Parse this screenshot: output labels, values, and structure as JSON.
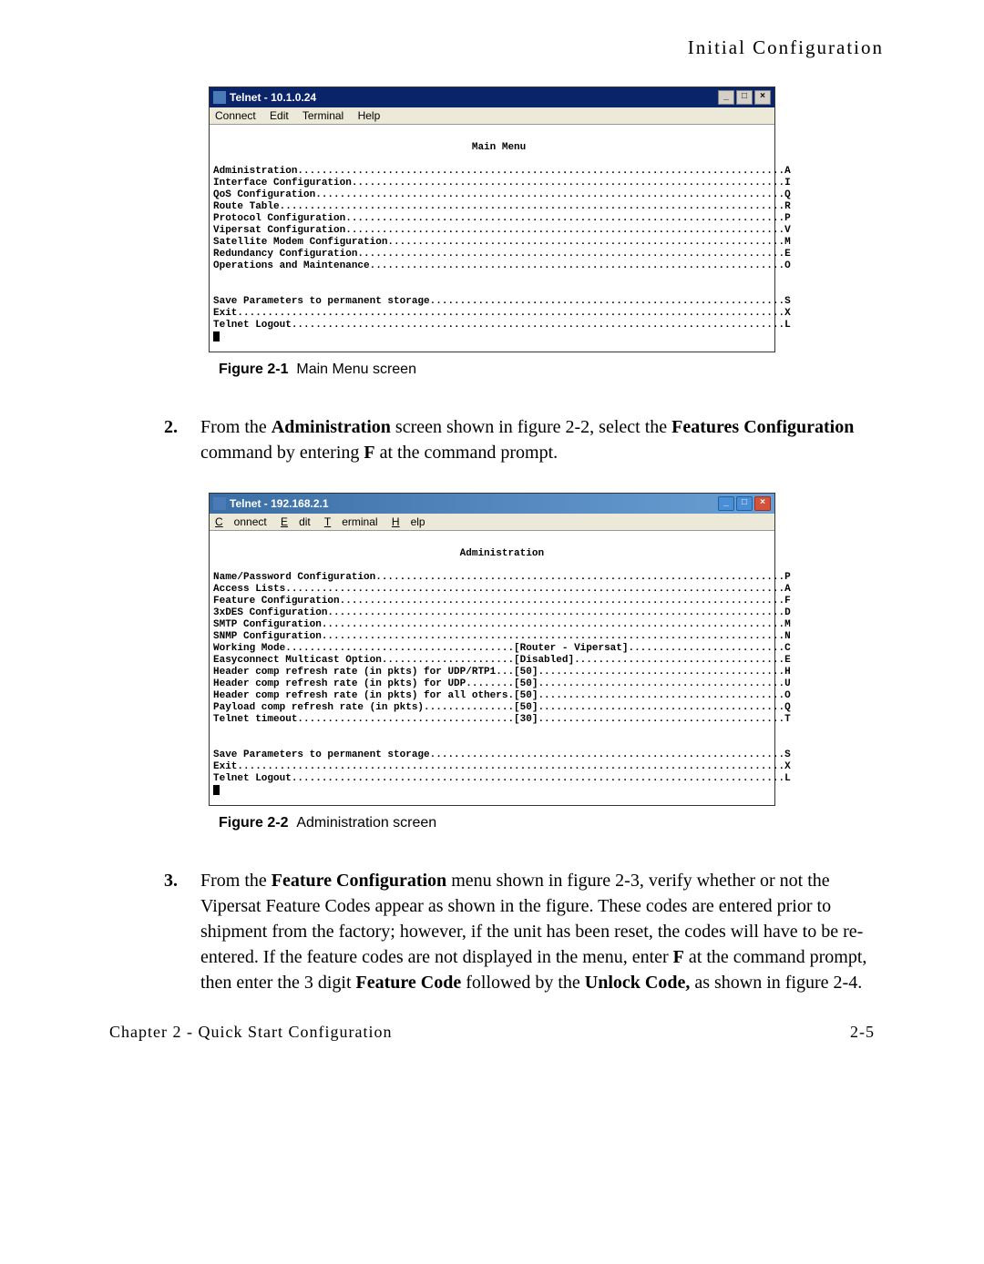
{
  "page_header": "Initial Configuration",
  "footer_left": "Chapter 2 - Quick Start Configuration",
  "footer_right": "2-5",
  "window1": {
    "title": "Telnet - 10.1.0.24",
    "menu": [
      "Connect",
      "Edit",
      "Terminal",
      "Help"
    ],
    "screen_title": "Main Menu",
    "lines": [
      {
        "label": "Administration",
        "key": "A"
      },
      {
        "label": "Interface Configuration",
        "key": "I"
      },
      {
        "label": "QoS Configuration",
        "key": "Q"
      },
      {
        "label": "Route Table",
        "key": "R"
      },
      {
        "label": "Protocol Configuration",
        "key": "P"
      },
      {
        "label": "Vipersat Configuration",
        "key": "V"
      },
      {
        "label": "Satellite Modem Configuration",
        "key": "M"
      },
      {
        "label": "Redundancy Configuration",
        "key": "E"
      },
      {
        "label": "Operations and Maintenance",
        "key": "O"
      }
    ],
    "footer_lines": [
      {
        "label": "Save Parameters to permanent storage",
        "key": "S"
      },
      {
        "label": "Exit",
        "key": "X"
      },
      {
        "label": "Telnet Logout",
        "key": "L"
      }
    ]
  },
  "caption1": {
    "label": "Figure 2-1",
    "text": "Main Menu screen"
  },
  "step2": {
    "num": "2.",
    "pre": "From the ",
    "b1": "Administration",
    "mid": " screen shown in figure 2-2, select the ",
    "b2": "Features Configuration",
    "mid2": " command by entering ",
    "b3": "F",
    "post": " at the command prompt."
  },
  "window2": {
    "title": "Telnet - 192.168.2.1",
    "menu": [
      "Connect",
      "Edit",
      "Terminal",
      "Help"
    ],
    "screen_title": "Administration",
    "lines": [
      {
        "label": "Name/Password Configuration",
        "val": "",
        "key": "P"
      },
      {
        "label": "Access Lists",
        "val": "",
        "key": "A"
      },
      {
        "label": "Feature Configuration",
        "val": "",
        "key": "F"
      },
      {
        "label": "3xDES Configuration",
        "val": "",
        "key": "D"
      },
      {
        "label": "SMTP Configuration",
        "val": "",
        "key": "M"
      },
      {
        "label": "SNMP Configuration",
        "val": "",
        "key": "N"
      },
      {
        "label": "Working Mode",
        "val": "[Router - Vipersat]",
        "key": "C"
      },
      {
        "label": "Easyconnect Multicast Option",
        "val": "[Disabled]",
        "key": "E"
      },
      {
        "label": "Header comp refresh rate (in pkts) for UDP/RTP1",
        "val": "[50]",
        "key": "H"
      },
      {
        "label": "Header comp refresh rate (in pkts) for UDP",
        "val": "[50]",
        "key": "U"
      },
      {
        "label": "Header comp refresh rate (in pkts) for all others",
        "val": "[50]",
        "key": "O"
      },
      {
        "label": "Payload comp refresh rate (in pkts)",
        "val": "[50]",
        "key": "Q"
      },
      {
        "label": "Telnet timeout",
        "val": "[30]",
        "key": "T"
      }
    ],
    "footer_lines": [
      {
        "label": "Save Parameters to permanent storage",
        "key": "S"
      },
      {
        "label": "Exit",
        "key": "X"
      },
      {
        "label": "Telnet Logout",
        "key": "L"
      }
    ]
  },
  "caption2": {
    "label": "Figure 2-2",
    "text": "Administration screen"
  },
  "step3": {
    "num": "3.",
    "pre": "From the ",
    "b1": "Feature Configuration",
    "mid": " menu shown in figure 2-3, verify whether or not the Vipersat Feature Codes appear as shown in the figure. These codes are entered prior to shipment from the factory; however, if the unit has been reset, the codes will have to be re-entered. If the feature codes are not displayed in the menu, enter ",
    "b2": "F",
    "mid2": " at the command prompt, then enter the 3 digit ",
    "b3": "Feature Code",
    "mid3": " followed by the ",
    "b4": "Unlock Code,",
    "post": " as shown in figure 2-4."
  },
  "terminal_style": {
    "line_width": 96,
    "font": "Courier New",
    "colors": {
      "bg": "#ffffff",
      "fg": "#000000",
      "titlebar1": "#0a246a",
      "titlebar2_start": "#3b6ea5",
      "titlebar2_end": "#6a9fd4",
      "menubar": "#ece9d8"
    }
  }
}
